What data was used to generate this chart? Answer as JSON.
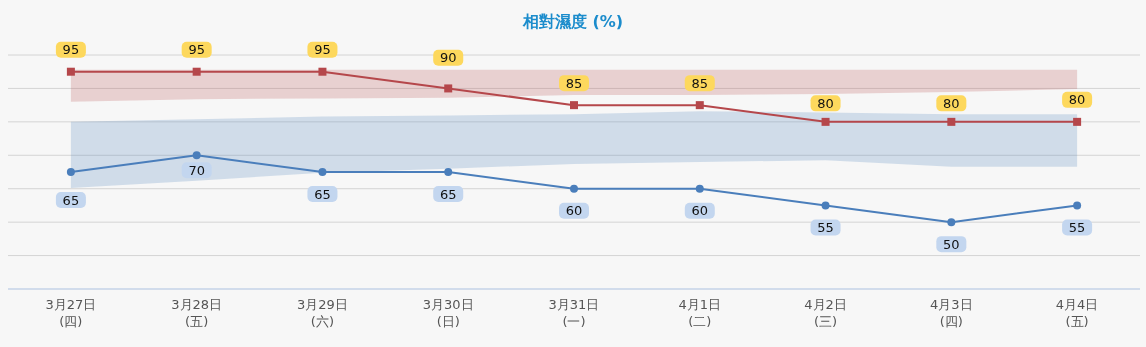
{
  "chart_data": {
    "type": "line",
    "title": "相對濕度 (%)",
    "categories": [
      "3月27日\n(四)",
      "3月28日\n(五)",
      "3月29日\n(六)",
      "3月30日\n(日)",
      "3月31日\n(一)",
      "4月1日\n(二)",
      "4月2日\n(三)",
      "4月3日\n(四)",
      "4月4日\n(五)"
    ],
    "series": [
      {
        "color": "#b5474b",
        "marker": "square",
        "values": [
          95,
          95,
          95,
          90,
          85,
          85,
          80,
          80,
          80
        ],
        "lower": [
          86,
          86.8,
          87,
          87.2,
          88,
          88,
          88.3,
          88.9,
          89.8
        ],
        "upper": [
          95.6,
          95.6,
          95.6,
          95.6,
          95.6,
          95.6,
          95.6,
          95.6,
          95.6
        ]
      },
      {
        "color": "#4a7ebb",
        "marker": "circle",
        "values": [
          65,
          70,
          65,
          65,
          60,
          60,
          55,
          50,
          55
        ],
        "lower": [
          60.2,
          62.4,
          64.8,
          66,
          67.4,
          68,
          68.5,
          66.6,
          66.6
        ],
        "upper": [
          80,
          80.8,
          81.6,
          81.9,
          82.3,
          83.2,
          82.8,
          82.3,
          82.3
        ]
      }
    ],
    "ylim": [
      30,
      100
    ],
    "yticks": [
      {
        "value": 30,
        "label": null
      },
      {
        "value": 40,
        "label": null
      },
      {
        "value": 50,
        "label": null
      },
      {
        "value": 60,
        "label": null
      },
      {
        "value": 70,
        "label": null
      },
      {
        "value": 80,
        "label": null
      },
      {
        "value": 90,
        "label": null
      },
      {
        "value": 100,
        "label": null
      }
    ],
    "grid": "y",
    "data_labels": true
  }
}
